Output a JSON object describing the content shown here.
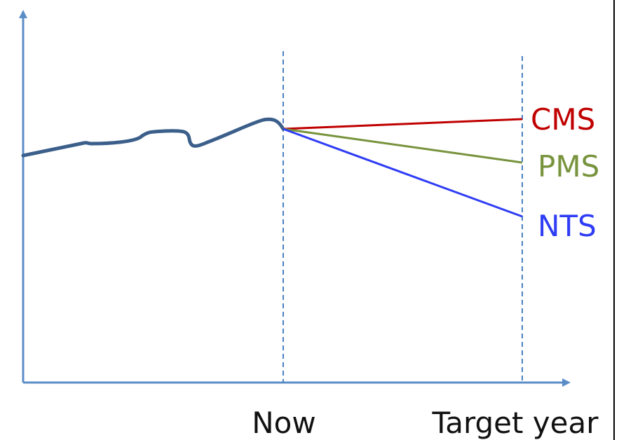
{
  "colors": {
    "axis": "#5b8ec9",
    "guide": "#4a7fbf",
    "history": "#3b5f8a",
    "cms": "#c00000",
    "pms": "#77933c",
    "nts": "#2e3cf5"
  },
  "x_axis": {
    "ticks": [
      "Now",
      "Target year"
    ]
  },
  "scenarios": [
    {
      "name": "CMS",
      "color": "#c00000"
    },
    {
      "name": "PMS",
      "color": "#77933c"
    },
    {
      "name": "NTS",
      "color": "#2e3cf5"
    }
  ]
}
